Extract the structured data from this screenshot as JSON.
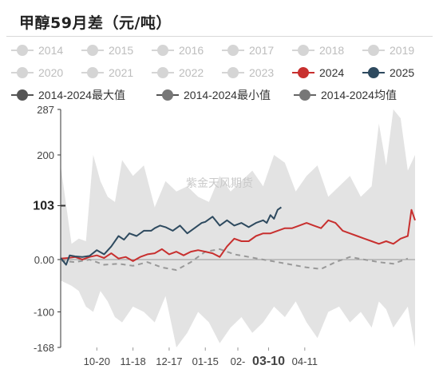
{
  "title": "甲醇59月差（元/吨）",
  "legend": [
    {
      "label": "2014",
      "color": "#cccccc",
      "active": false
    },
    {
      "label": "2015",
      "color": "#cccccc",
      "active": false
    },
    {
      "label": "2016",
      "color": "#cccccc",
      "active": false
    },
    {
      "label": "2017",
      "color": "#cccccc",
      "active": false
    },
    {
      "label": "2018",
      "color": "#cccccc",
      "active": false
    },
    {
      "label": "2019",
      "color": "#cccccc",
      "active": false
    },
    {
      "label": "2020",
      "color": "#cccccc",
      "active": false
    },
    {
      "label": "2021",
      "color": "#cccccc",
      "active": false
    },
    {
      "label": "2022",
      "color": "#cccccc",
      "active": false
    },
    {
      "label": "2023",
      "color": "#cccccc",
      "active": false
    },
    {
      "label": "2024",
      "color": "#c8302f",
      "active": true
    },
    {
      "label": "2025",
      "color": "#2e4a5f",
      "active": true
    },
    {
      "label": "2014-2024最大值",
      "color": "#555555",
      "active": true
    },
    {
      "label": "2014-2024最小值",
      "color": "#555555",
      "active": true
    },
    {
      "label": "2014-2024均值",
      "color": "#666666",
      "active": true
    }
  ],
  "watermark": "紫金天风期货",
  "chart_data": {
    "type": "area",
    "title": "甲醇59月差（元/吨）",
    "y_ticks": [
      "287",
      "200",
      "103",
      "0.00",
      "-100",
      "-168"
    ],
    "y_tick_values": [
      287,
      200,
      103,
      0,
      -100,
      -168
    ],
    "x_ticks": [
      "10-20",
      "11-18",
      "12-17",
      "01-15",
      "02-",
      "03-10",
      "04-11"
    ],
    "highlight_x": "03-10",
    "highlight_y": "103",
    "ylim": [
      -168,
      287
    ],
    "x_range": [
      0,
      196
    ],
    "x_tick_positions": [
      20,
      40,
      60,
      80,
      98,
      115,
      135
    ],
    "series": [
      {
        "name": "2025",
        "color": "#2e4a5f",
        "x": [
          0,
          3,
          5,
          8,
          12,
          16,
          20,
          24,
          28,
          32,
          35,
          38,
          42,
          46,
          50,
          52,
          55,
          58,
          62,
          66,
          70,
          74,
          78,
          80,
          84,
          88,
          92,
          96,
          100,
          104,
          108,
          112,
          114,
          116,
          118,
          120,
          122
        ],
        "y": [
          3,
          -10,
          8,
          6,
          5,
          7,
          18,
          10,
          25,
          45,
          38,
          50,
          45,
          55,
          55,
          60,
          65,
          62,
          55,
          65,
          50,
          60,
          70,
          72,
          82,
          65,
          75,
          65,
          70,
          62,
          70,
          75,
          70,
          85,
          78,
          95,
          100
        ]
      },
      {
        "name": "2024",
        "color": "#c8302f",
        "x": [
          0,
          4,
          8,
          12,
          16,
          20,
          24,
          28,
          32,
          36,
          40,
          44,
          48,
          52,
          56,
          60,
          64,
          68,
          72,
          76,
          80,
          84,
          88,
          92,
          96,
          100,
          104,
          108,
          112,
          116,
          120,
          124,
          128,
          132,
          136,
          140,
          144,
          148,
          152,
          156,
          160,
          164,
          168,
          172,
          176,
          180,
          184,
          188,
          192,
          194,
          196
        ],
        "y": [
          2,
          3,
          5,
          0,
          5,
          8,
          3,
          12,
          2,
          5,
          -3,
          5,
          10,
          12,
          20,
          10,
          15,
          8,
          15,
          18,
          15,
          12,
          5,
          25,
          40,
          35,
          35,
          45,
          50,
          50,
          55,
          60,
          60,
          65,
          70,
          65,
          60,
          75,
          70,
          55,
          50,
          45,
          40,
          35,
          30,
          35,
          30,
          40,
          45,
          95,
          75
        ]
      },
      {
        "name": "2014-2024均值",
        "color": "#999999",
        "dashed": true,
        "x": [
          0,
          8,
          16,
          24,
          32,
          40,
          48,
          56,
          64,
          72,
          80,
          88,
          96,
          104,
          112,
          120,
          128,
          136,
          144,
          152,
          160,
          168,
          176,
          184,
          192
        ],
        "y": [
          -2,
          -5,
          0,
          -10,
          -8,
          -12,
          -5,
          -15,
          -20,
          -5,
          15,
          20,
          10,
          5,
          0,
          -5,
          -10,
          -15,
          -18,
          -5,
          5,
          0,
          -5,
          -8,
          2
        ]
      },
      {
        "name": "2014-2024最大值",
        "color": "#e3e3e3",
        "x": [
          0,
          6,
          10,
          14,
          18,
          22,
          26,
          30,
          34,
          40,
          46,
          52,
          58,
          64,
          70,
          76,
          82,
          88,
          94,
          100,
          106,
          112,
          118,
          124,
          130,
          136,
          142,
          148,
          154,
          160,
          166,
          172,
          176,
          180,
          184,
          188,
          192,
          196
        ],
        "y": [
          180,
          30,
          40,
          35,
          200,
          150,
          120,
          110,
          190,
          160,
          180,
          100,
          150,
          130,
          140,
          120,
          110,
          160,
          130,
          150,
          170,
          140,
          200,
          185,
          130,
          160,
          180,
          120,
          140,
          160,
          120,
          140,
          260,
          180,
          287,
          270,
          170,
          200
        ]
      },
      {
        "name": "2014-2024最小值",
        "color": "#e3e3e3",
        "x": [
          0,
          6,
          10,
          14,
          18,
          22,
          26,
          30,
          34,
          40,
          46,
          52,
          58,
          64,
          70,
          76,
          82,
          88,
          94,
          100,
          106,
          112,
          118,
          124,
          130,
          136,
          142,
          148,
          154,
          160,
          166,
          172,
          176,
          180,
          184,
          188,
          192,
          196
        ],
        "y": [
          -40,
          -50,
          -60,
          -90,
          -100,
          -60,
          -80,
          -110,
          -120,
          -90,
          -100,
          -120,
          -70,
          -168,
          -140,
          -100,
          -120,
          -160,
          -130,
          -110,
          -140,
          -120,
          -90,
          -110,
          -80,
          -120,
          -150,
          -100,
          -90,
          -120,
          -100,
          -130,
          -80,
          -95,
          -130,
          -110,
          -90,
          -168
        ]
      }
    ]
  }
}
